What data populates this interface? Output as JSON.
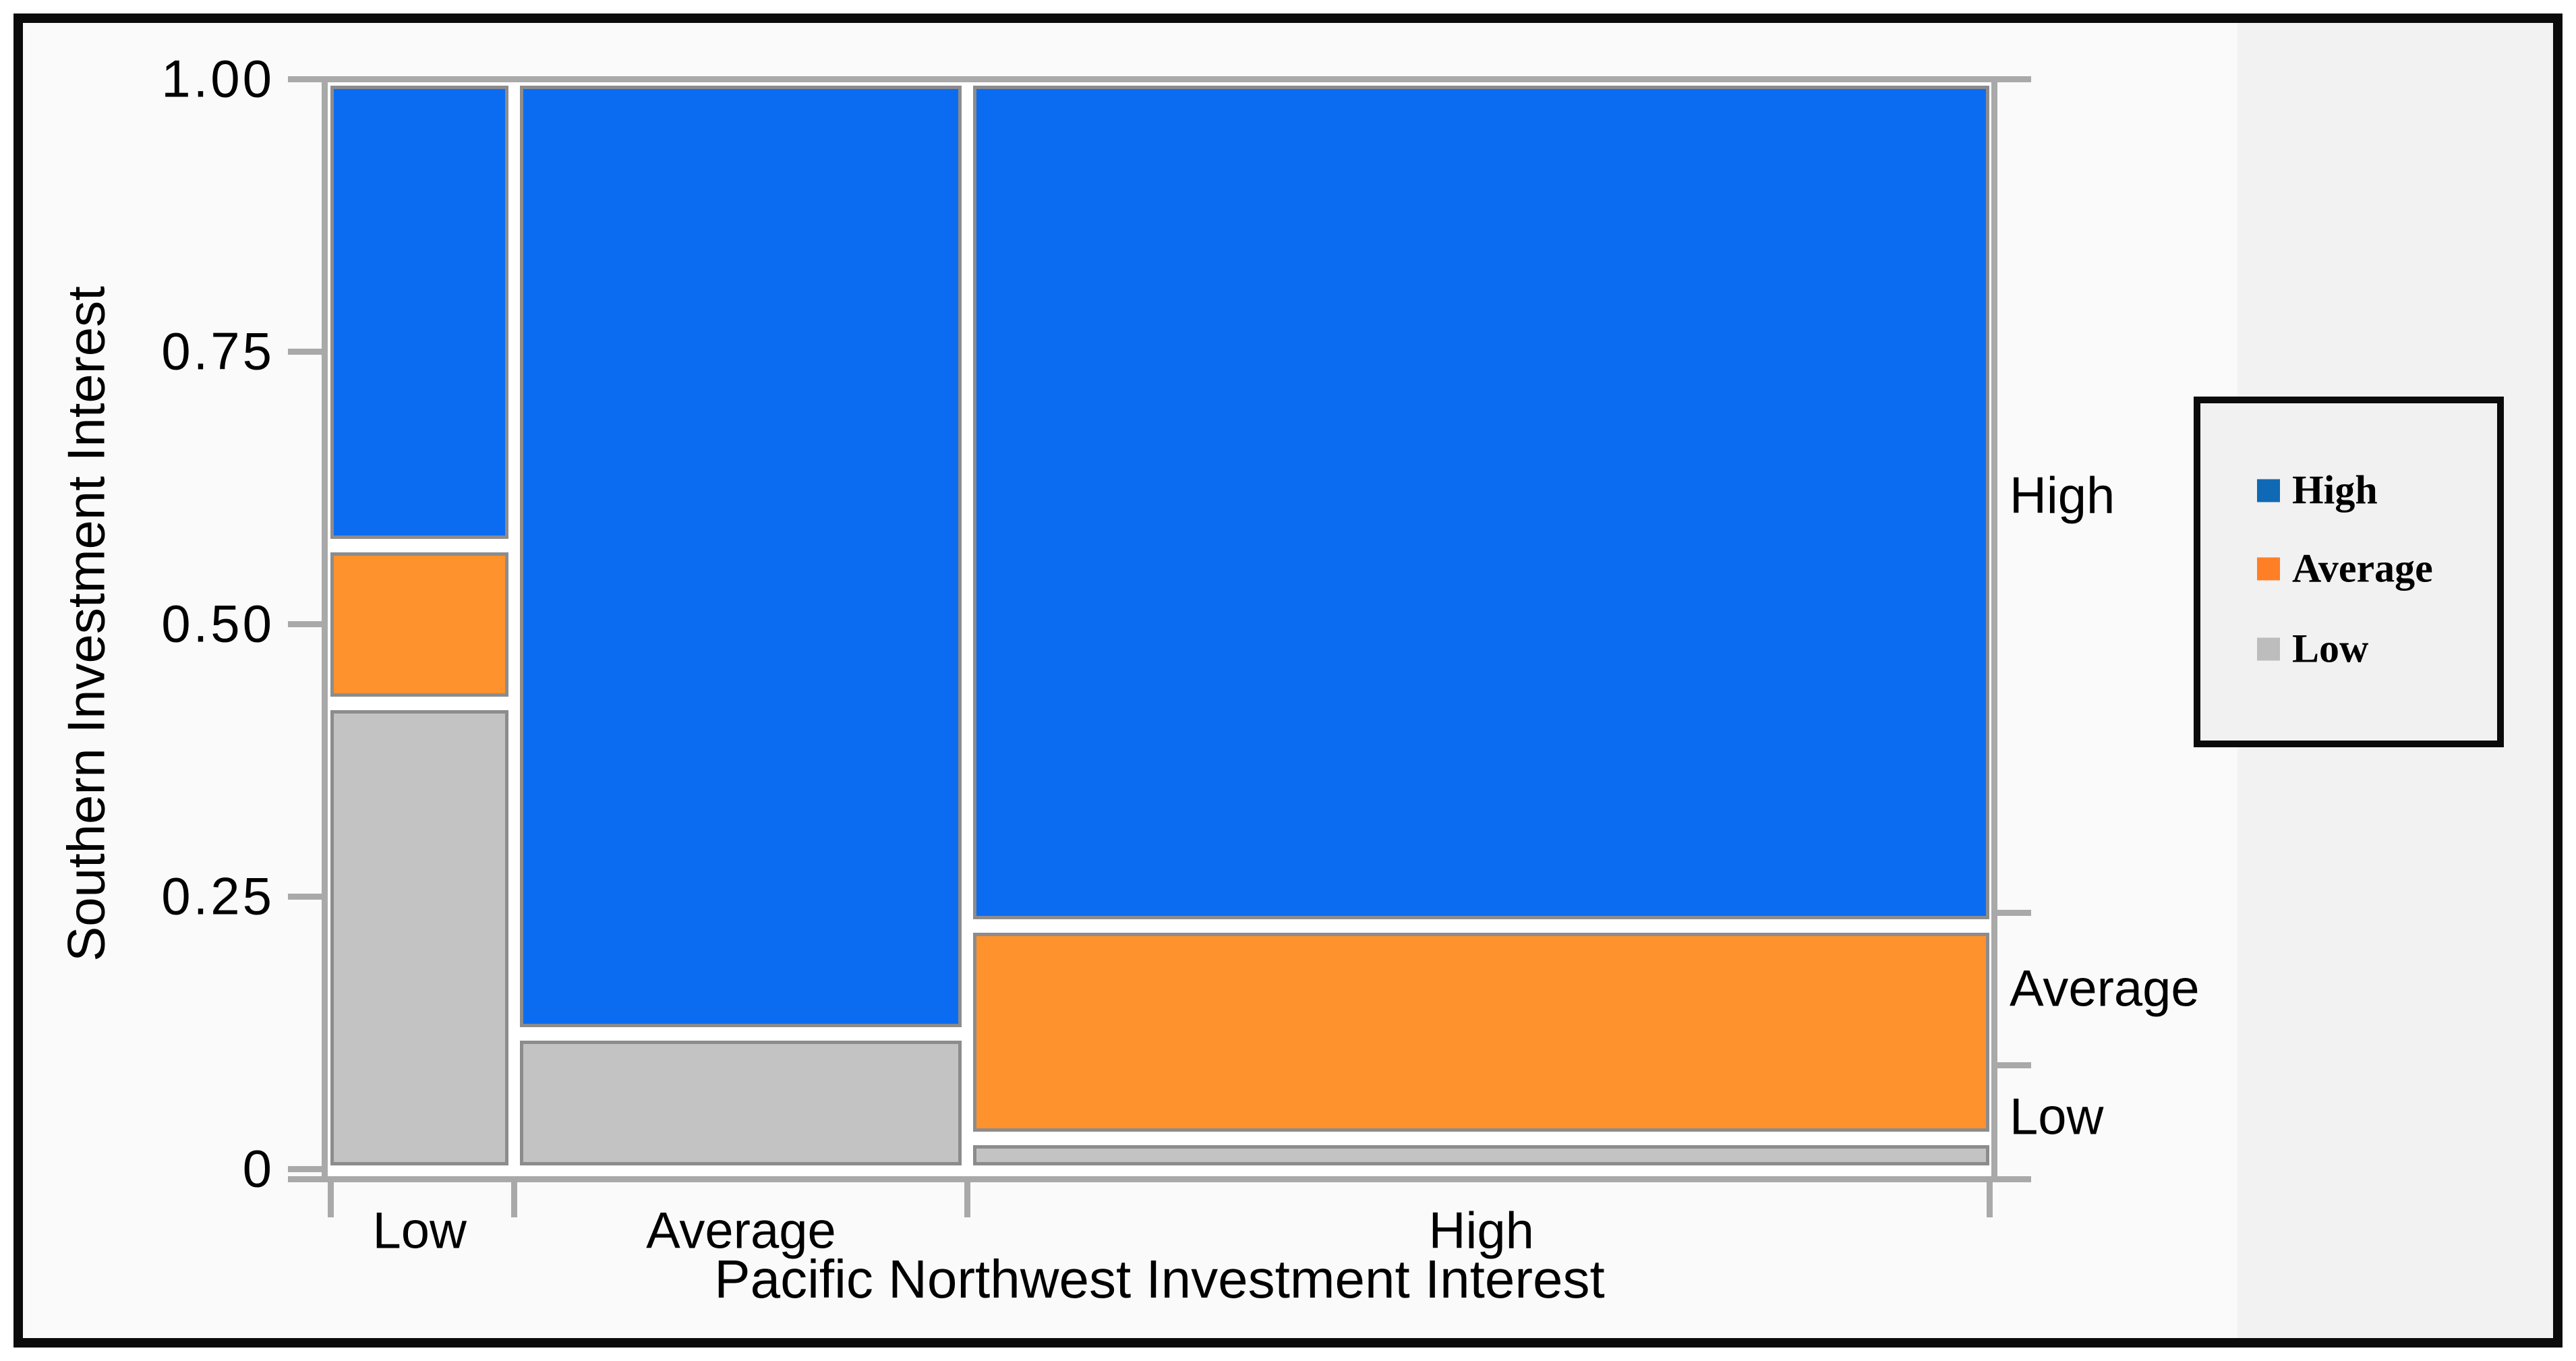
{
  "y_axis": {
    "title": "Southern Investment Interest",
    "tick_labels": [
      "1.00",
      "0.75",
      "0.50",
      "0.25",
      "0"
    ],
    "tick_values": [
      1.0,
      0.75,
      0.5,
      0.25,
      0
    ]
  },
  "x_axis": {
    "title": "Pacific Northwest Investment Interest",
    "category_labels": [
      "Low",
      "Average",
      "High"
    ]
  },
  "right_axis": {
    "labels_top_to_bottom": [
      "High",
      "Average",
      "Low"
    ]
  },
  "legend": {
    "items": [
      {
        "label": "High",
        "color": "#1069b4"
      },
      {
        "label": "Average",
        "color": "#ff7f27"
      },
      {
        "label": "Low",
        "color": "#bdbdbd"
      }
    ]
  },
  "colors": {
    "segment_fill": {
      "High": "#0b6cf1",
      "Average": "#fe922d",
      "Low": "#c3c3c3"
    },
    "segment_border": "#8c8c8c",
    "axis_gray": "#a9a9a9",
    "plot_background": "#ffffff",
    "figure_background": "#fafafa",
    "right_band_background": "#f2f2f2",
    "legend_background": "#f1f1f1",
    "frame_border": "#0b0b0b"
  },
  "chart_data": {
    "type": "mosaic",
    "x_variable": "Pacific Northwest Investment Interest",
    "y_variable": "Southern Investment Interest",
    "x_categories": [
      "Low",
      "Average",
      "High"
    ],
    "y_categories_top_to_bottom": [
      "High",
      "Average",
      "Low"
    ],
    "column_proportions": [
      0.109,
      0.27,
      0.621
    ],
    "cell_proportions_within_column": {
      "Low": {
        "Low": 0.427,
        "Average": 0.145,
        "High": 0.428
      },
      "Average": {
        "Low": 0.124,
        "Average": 0.0,
        "High": 0.876
      },
      "High": {
        "Low": 0.028,
        "Average": 0.195,
        "High": 0.777
      }
    },
    "y_marginal_boundaries": [
      0.095,
      0.235
    ],
    "y_axis_range": [
      0,
      1
    ],
    "grid": false,
    "legend_position": "right"
  }
}
